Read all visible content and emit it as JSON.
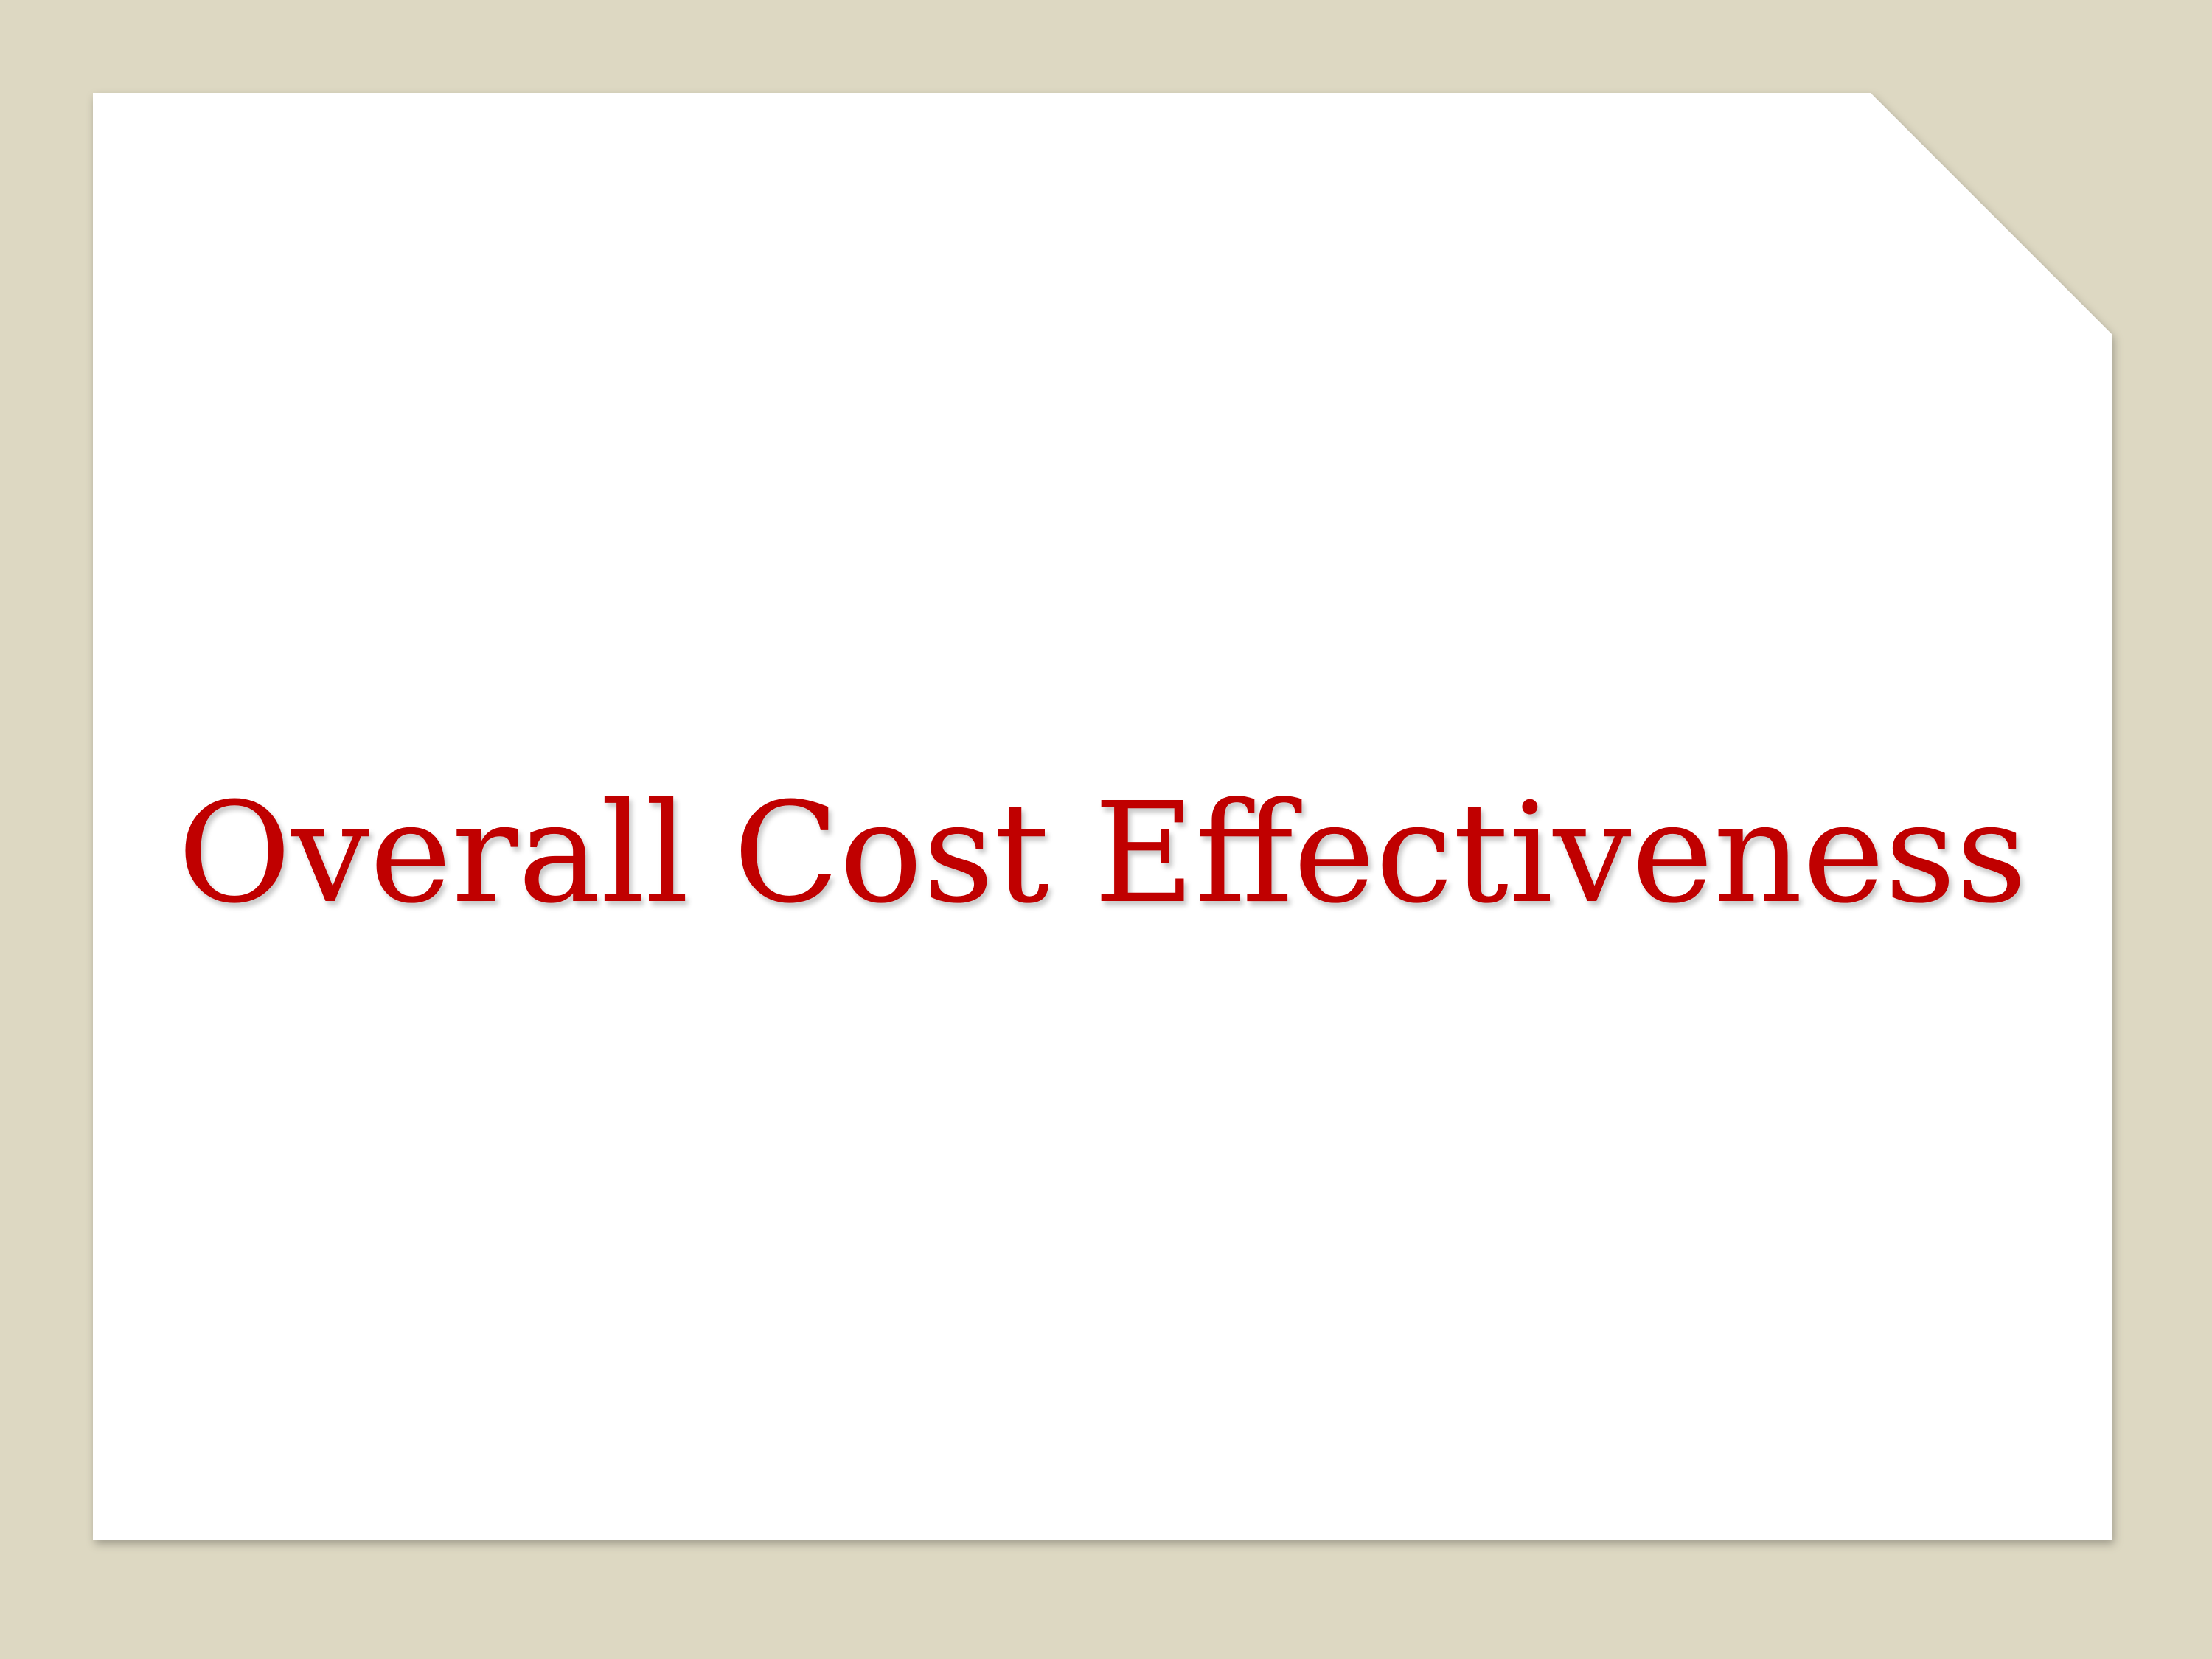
{
  "slide": {
    "title": "Overall Cost Effectiveness"
  },
  "colors": {
    "background": "#ddd8c2",
    "card": "#ffffff",
    "title": "#c00000"
  }
}
